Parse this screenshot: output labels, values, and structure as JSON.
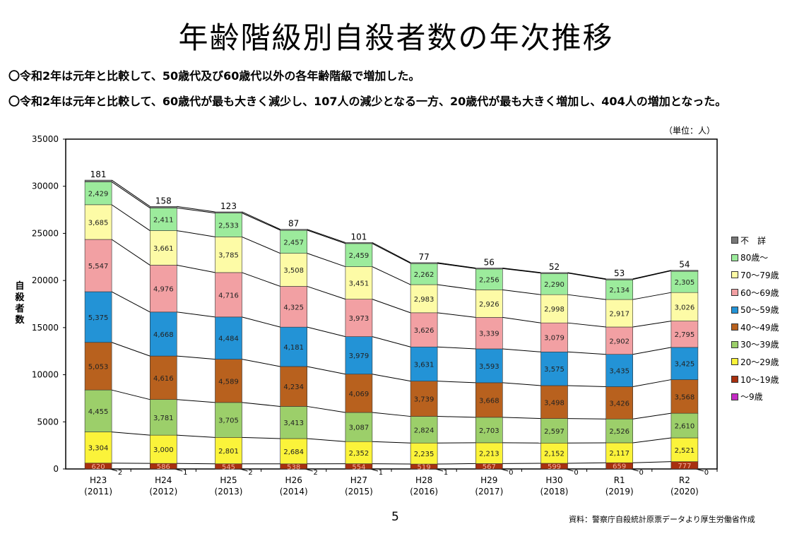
{
  "title": "年齢階級別自殺者数の年次推移",
  "notes": [
    "〇令和2年は元年と比較して、50歳代及び60歳代以外の各年齢階級で増加した。",
    "〇令和2年は元年と比較して、60歳代が最も大きく減少し、107人の減少となる一方、20歳代が最も大きく増加し、404人の増加となった。"
  ],
  "unit_label": "（単位：人）",
  "page_number": "5",
  "source": "資料：警察庁自殺統計原票データより厚生労働省作成",
  "chart_data": {
    "type": "bar",
    "stacked": true,
    "title": "",
    "ylabel": "自殺者数",
    "xlabel": "",
    "ylim": [
      0,
      35000
    ],
    "yticks": [
      "0",
      "5000",
      "10000",
      "15000",
      "20000",
      "25000",
      "30000",
      "35000"
    ],
    "categories": [
      {
        "era": "H23",
        "year": "(2011)"
      },
      {
        "era": "H24",
        "year": "(2012)"
      },
      {
        "era": "H25",
        "year": "(2013)"
      },
      {
        "era": "H26",
        "year": "(2014)"
      },
      {
        "era": "H27",
        "year": "(2015)"
      },
      {
        "era": "H28",
        "year": "(2016)"
      },
      {
        "era": "H29",
        "year": "(2017)"
      },
      {
        "era": "H30",
        "year": "(2018)"
      },
      {
        "era": "R1",
        "year": "(2019)"
      },
      {
        "era": "R2",
        "year": "(2020)"
      }
    ],
    "legend_position": "right",
    "series": [
      {
        "name": "～9歳",
        "color": "#c42bc4",
        "values": [
          2,
          1,
          2,
          2,
          1,
          1,
          0,
          0,
          0,
          0
        ]
      },
      {
        "name": "10～19歳",
        "color": "#a8300f",
        "values": [
          620,
          586,
          545,
          538,
          554,
          519,
          567,
          599,
          659,
          777
        ]
      },
      {
        "name": "20～29歳",
        "color": "#fbf33a",
        "values": [
          3304,
          3000,
          2801,
          2684,
          2352,
          2235,
          2213,
          2152,
          2117,
          2521
        ]
      },
      {
        "name": "30～39歳",
        "color": "#9ccf6a",
        "values": [
          4455,
          3781,
          3705,
          3413,
          3087,
          2824,
          2703,
          2597,
          2526,
          2610
        ]
      },
      {
        "name": "40～49歳",
        "color": "#b8611e",
        "values": [
          5053,
          4616,
          4589,
          4234,
          4069,
          3739,
          3668,
          3498,
          3426,
          3568
        ]
      },
      {
        "name": "50～59歳",
        "color": "#2393d6",
        "values": [
          5375,
          4668,
          4484,
          4181,
          3979,
          3631,
          3593,
          3575,
          3435,
          3425
        ]
      },
      {
        "name": "60～69歳",
        "color": "#f2a0a3",
        "values": [
          5547,
          4976,
          4716,
          4325,
          3973,
          3626,
          3339,
          3079,
          2902,
          2795
        ]
      },
      {
        "name": "70～79歳",
        "color": "#fdfba6",
        "values": [
          3685,
          3661,
          3785,
          3508,
          3451,
          2983,
          2926,
          2998,
          2917,
          3026
        ]
      },
      {
        "name": "80歳～",
        "color": "#9ceb9c",
        "values": [
          2429,
          2411,
          2533,
          2457,
          2459,
          2262,
          2256,
          2290,
          2134,
          2305
        ]
      },
      {
        "name": "不　詳",
        "color": "#777777",
        "values": [
          181,
          158,
          123,
          87,
          101,
          77,
          56,
          52,
          53,
          54
        ]
      }
    ]
  }
}
